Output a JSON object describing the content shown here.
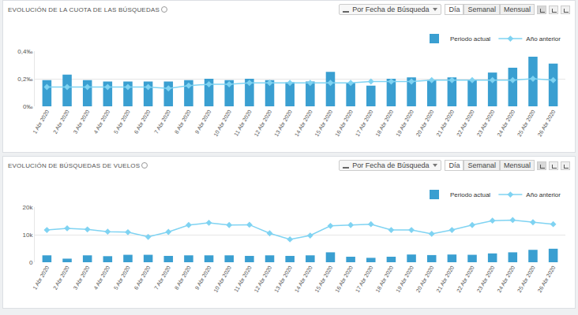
{
  "chart_data": [
    {
      "type": "bar",
      "title": "EVOLUCIÓN DE LA CUOTA DE LAS BÚSQUEDAS",
      "controls": {
        "dropdown": "Por Fecha de Búsqueda",
        "buttons": [
          "Día",
          "Semanal",
          "Mensual"
        ],
        "active": "Día"
      },
      "categories": [
        "1 Abr 2020",
        "2 Abr 2020",
        "3 Abr 2020",
        "4 Abr 2020",
        "5 Abr 2020",
        "6 Abr 2020",
        "7 Abr 2020",
        "8 Abr 2020",
        "9 Abr 2020",
        "10 Abr 2020",
        "11 Abr 2020",
        "12 Abr 2020",
        "13 Abr 2020",
        "14 Abr 2020",
        "15 Abr 2020",
        "16 Abr 2020",
        "17 Abr 2020",
        "18 Abr 2020",
        "19 Abr 2020",
        "20 Abr 2020",
        "21 Abr 2020",
        "22 Abr 2020",
        "23 Abr 2020",
        "24 Abr 2020",
        "25 Abr 2020",
        "26 Abr 2020"
      ],
      "series": [
        {
          "name": "Periodo actual",
          "type": "bar",
          "color": "#3a9fd1",
          "values": [
            0.19,
            0.23,
            0.19,
            0.18,
            0.18,
            0.18,
            0.18,
            0.19,
            0.2,
            0.19,
            0.2,
            0.19,
            0.175,
            0.18,
            0.25,
            0.17,
            0.15,
            0.2,
            0.21,
            0.19,
            0.21,
            0.19,
            0.245,
            0.28,
            0.36,
            0.31
          ]
        },
        {
          "name": "Año anterior",
          "type": "line",
          "color": "#7fd3f2",
          "marker": "diamond",
          "values": [
            0.14,
            0.14,
            0.14,
            0.14,
            0.14,
            0.14,
            0.13,
            0.15,
            0.16,
            0.16,
            0.17,
            0.17,
            0.17,
            0.17,
            0.17,
            0.17,
            0.18,
            0.18,
            0.18,
            0.19,
            0.19,
            0.19,
            0.19,
            0.19,
            0.2,
            0.19
          ]
        }
      ],
      "ylim": [
        0,
        0.4
      ],
      "yticks": [
        {
          "value": 0,
          "label": "0‰"
        },
        {
          "value": 0.2,
          "label": "0,2‰"
        },
        {
          "value": 0.4,
          "label": "0,4‰"
        }
      ],
      "grid": true,
      "legend": "top-right"
    },
    {
      "type": "bar",
      "title": "EVOLUCIÓN DE BÚSQUEDAS DE VUELOS",
      "controls": {
        "dropdown": "Por Fecha de Búsqueda",
        "buttons": [
          "Día",
          "Semanal",
          "Mensual"
        ],
        "active": "Día"
      },
      "categories": [
        "1 Abr 2020",
        "2 Abr 2020",
        "3 Abr 2020",
        "4 Abr 2020",
        "5 Abr 2020",
        "6 Abr 2020",
        "7 Abr 2020",
        "8 Abr 2020",
        "9 Abr 2020",
        "10 Abr 2020",
        "11 Abr 2020",
        "12 Abr 2020",
        "13 Abr 2020",
        "14 Abr 2020",
        "15 Abr 2020",
        "16 Abr 2020",
        "17 Abr 2020",
        "18 Abr 2020",
        "19 Abr 2020",
        "20 Abr 2020",
        "21 Abr 2020",
        "22 Abr 2020",
        "23 Abr 2020",
        "24 Abr 2020",
        "25 Abr 2020",
        "26 Abr 2020"
      ],
      "series": [
        {
          "name": "Periodo actual",
          "type": "bar",
          "color": "#3a9fd1",
          "values": [
            2500,
            1300,
            2500,
            2200,
            2700,
            2700,
            2300,
            2500,
            2500,
            2500,
            2300,
            2500,
            2300,
            2500,
            3600,
            2000,
            1600,
            2000,
            2800,
            2600,
            2800,
            2700,
            3200,
            3600,
            4500,
            4900
          ]
        },
        {
          "name": "Año anterior",
          "type": "line",
          "color": "#7fd3f2",
          "marker": "diamond",
          "values": [
            11700,
            12300,
            11900,
            11100,
            10900,
            9200,
            11000,
            13500,
            14300,
            13500,
            13600,
            10500,
            8300,
            9700,
            13200,
            13500,
            13800,
            11700,
            11700,
            10300,
            11700,
            13500,
            15100,
            15300,
            14500,
            13800
          ]
        }
      ],
      "ylim": [
        0,
        20000
      ],
      "yticks": [
        0,
        {
          "value": 10000,
          "label": "10k"
        },
        {
          "value": 20000,
          "label": "20k"
        }
      ],
      "grid": true,
      "legend": "top-right"
    }
  ]
}
